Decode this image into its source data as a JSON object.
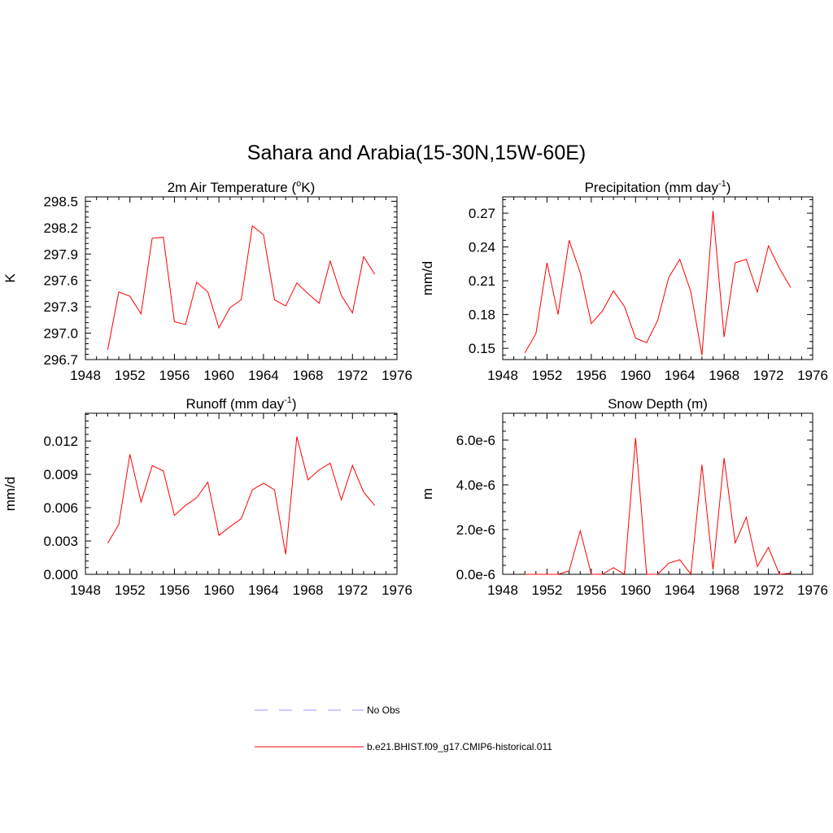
{
  "figure_title": "Sahara and Arabia(15-30N,15W-60E)",
  "legend": [
    {
      "label": "No Obs",
      "color": "#9999ff",
      "style": "dashed"
    },
    {
      "label": "b.e21.BHIST.f09_g17.CMIP6-historical.011",
      "color": "#ff0000",
      "style": "solid"
    }
  ],
  "chart_data": [
    {
      "type": "line",
      "title": "2m Air Temperature (°K)",
      "title_parts": [
        "2m Air Temperature (",
        "o",
        "K)"
      ],
      "xlabel": "",
      "ylabel": "K",
      "xlim": [
        1948,
        1976
      ],
      "ylim": [
        296.7,
        298.55
      ],
      "xticks": [
        1948,
        1952,
        1956,
        1960,
        1964,
        1968,
        1972,
        1976
      ],
      "yticks": [
        296.7,
        297.0,
        297.3,
        297.6,
        297.9,
        298.2,
        298.5
      ],
      "ytick_labels": [
        "296.7",
        "297.0",
        "297.3",
        "297.6",
        "297.9",
        "298.2",
        "298.5"
      ],
      "x": [
        1950,
        1951,
        1952,
        1953,
        1954,
        1955,
        1956,
        1957,
        1958,
        1959,
        1960,
        1961,
        1962,
        1963,
        1964,
        1965,
        1966,
        1967,
        1968,
        1969,
        1970,
        1971,
        1972,
        1973,
        1974
      ],
      "series": [
        {
          "name": "b.e21.BHIST.f09_g17.CMIP6-historical.011",
          "values": [
            296.81,
            297.47,
            297.42,
            297.22,
            298.08,
            298.09,
            297.13,
            297.1,
            297.58,
            297.47,
            297.06,
            297.29,
            297.38,
            298.22,
            298.12,
            297.38,
            297.31,
            297.57,
            297.45,
            297.34,
            297.82,
            297.43,
            297.23,
            297.87,
            297.67
          ]
        }
      ]
    },
    {
      "type": "line",
      "title": "Precipitation (mm day-1)",
      "title_parts": [
        "Precipitation (mm day",
        "-1",
        ")"
      ],
      "xlabel": "",
      "ylabel": "mm/d",
      "xlim": [
        1948,
        1976
      ],
      "ylim": [
        0.14,
        0.2845
      ],
      "xticks": [
        1948,
        1952,
        1956,
        1960,
        1964,
        1968,
        1972,
        1976
      ],
      "yticks": [
        0.15,
        0.18,
        0.21,
        0.24,
        0.27
      ],
      "ytick_labels": [
        "0.15",
        "0.18",
        "0.21",
        "0.24",
        "0.27"
      ],
      "x": [
        1950,
        1951,
        1952,
        1953,
        1954,
        1955,
        1956,
        1957,
        1958,
        1959,
        1960,
        1961,
        1962,
        1963,
        1964,
        1965,
        1966,
        1967,
        1968,
        1969,
        1970,
        1971,
        1972,
        1973,
        1974
      ],
      "series": [
        {
          "name": "b.e21.BHIST.f09_g17.CMIP6-historical.011",
          "values": [
            0.146,
            0.163,
            0.226,
            0.18,
            0.246,
            0.217,
            0.172,
            0.183,
            0.201,
            0.187,
            0.159,
            0.155,
            0.175,
            0.213,
            0.229,
            0.2,
            0.144,
            0.272,
            0.16,
            0.226,
            0.229,
            0.2,
            0.241,
            0.221,
            0.204
          ]
        }
      ]
    },
    {
      "type": "line",
      "title": "Runoff (mm day-1)",
      "title_parts": [
        "Runoff (mm day",
        "-1",
        ")"
      ],
      "xlabel": "",
      "ylabel": "mm/d",
      "xlim": [
        1948,
        1976
      ],
      "ylim": [
        0.0,
        0.0145
      ],
      "xticks": [
        1948,
        1952,
        1956,
        1960,
        1964,
        1968,
        1972,
        1976
      ],
      "yticks": [
        0.0,
        0.003,
        0.006,
        0.009,
        0.012
      ],
      "ytick_labels": [
        "0.000",
        "0.003",
        "0.006",
        "0.009",
        "0.012"
      ],
      "x": [
        1950,
        1951,
        1952,
        1953,
        1954,
        1955,
        1956,
        1957,
        1958,
        1959,
        1960,
        1961,
        1962,
        1963,
        1964,
        1965,
        1966,
        1967,
        1968,
        1969,
        1970,
        1971,
        1972,
        1973,
        1974
      ],
      "series": [
        {
          "name": "b.e21.BHIST.f09_g17.CMIP6-historical.011",
          "values": [
            0.0028,
            0.0045,
            0.0108,
            0.0065,
            0.0098,
            0.0093,
            0.0053,
            0.0062,
            0.0069,
            0.0083,
            0.0035,
            0.0043,
            0.005,
            0.0076,
            0.0082,
            0.0076,
            0.0018,
            0.0124,
            0.0085,
            0.0094,
            0.01,
            0.0067,
            0.0098,
            0.0074,
            0.0062
          ]
        }
      ]
    },
    {
      "type": "line",
      "title": "Snow Depth (m)",
      "title_parts": [
        "Snow Depth (m)"
      ],
      "xlabel": "",
      "ylabel": "m",
      "xlim": [
        1948,
        1976
      ],
      "ylim": [
        0.0,
        7.2e-06
      ],
      "xticks": [
        1948,
        1952,
        1956,
        1960,
        1964,
        1968,
        1972,
        1976
      ],
      "yticks": [
        0.0,
        2e-06,
        4e-06,
        6e-06
      ],
      "ytick_labels": [
        "0.0e-6",
        "2.0e-6",
        "4.0e-6",
        "6.0e-6"
      ],
      "x": [
        1950,
        1951,
        1952,
        1953,
        1954,
        1955,
        1956,
        1957,
        1958,
        1959,
        1960,
        1961,
        1962,
        1963,
        1964,
        1965,
        1966,
        1967,
        1968,
        1969,
        1970,
        1971,
        1972,
        1973,
        1974
      ],
      "series": [
        {
          "name": "b.e21.BHIST.f09_g17.CMIP6-historical.011",
          "values": [
            0.0,
            0.0,
            0.0,
            0.0,
            1.5e-07,
            1.95e-06,
            0.0,
            0.0,
            3e-07,
            0.0,
            6.1e-06,
            0.0,
            0.0,
            5e-07,
            6.5e-07,
            0.0,
            4.9e-06,
            2e-07,
            5.2e-06,
            1.4e-06,
            2.55e-06,
            3.5e-07,
            1.2e-06,
            0.0,
            5e-08
          ]
        }
      ]
    }
  ]
}
